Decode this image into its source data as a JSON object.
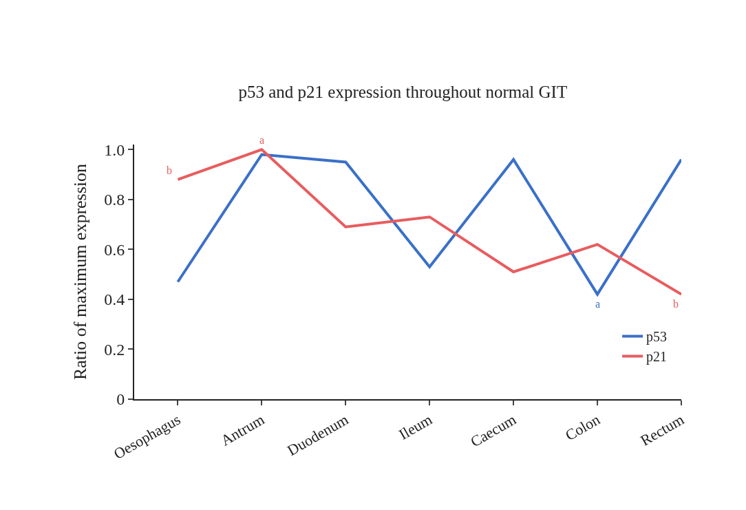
{
  "chart_data": {
    "type": "line",
    "title": "p53 and p21 expression throughout normal GIT",
    "ylabel": "Ratio of maximum expression",
    "categories": [
      "Oesophagus",
      "Antrum",
      "Duodenum",
      "Ileum",
      "Caecum",
      "Colon",
      "Rectum"
    ],
    "series": [
      {
        "name": "p53",
        "color": "#3a70c8",
        "values": [
          0.47,
          0.98,
          0.95,
          0.53,
          0.96,
          0.42,
          0.96
        ]
      },
      {
        "name": "p21",
        "color": "#e85c5e",
        "values": [
          0.88,
          1.0,
          0.69,
          0.73,
          0.51,
          0.62,
          0.42
        ]
      }
    ],
    "ylim": [
      0,
      1.02
    ],
    "yticks": [
      0,
      0.2,
      0.4,
      0.6,
      {
        "value": 0.8,
        "label": "0.8"
      },
      {
        "value": 1,
        "label": "1.0"
      }
    ],
    "annotations": [
      {
        "text": "b",
        "x": "Oesophagus",
        "y": 0.88
      },
      {
        "text": "a",
        "x": "Antrum",
        "y": 1.0
      },
      {
        "text": "a",
        "x": "Colon",
        "y": 0.42
      },
      {
        "text": "b",
        "x": "Rectum",
        "y": 0.42
      }
    ],
    "grid": false,
    "legend": "bottom right",
    "marker": "none",
    "line_style": "solid"
  }
}
